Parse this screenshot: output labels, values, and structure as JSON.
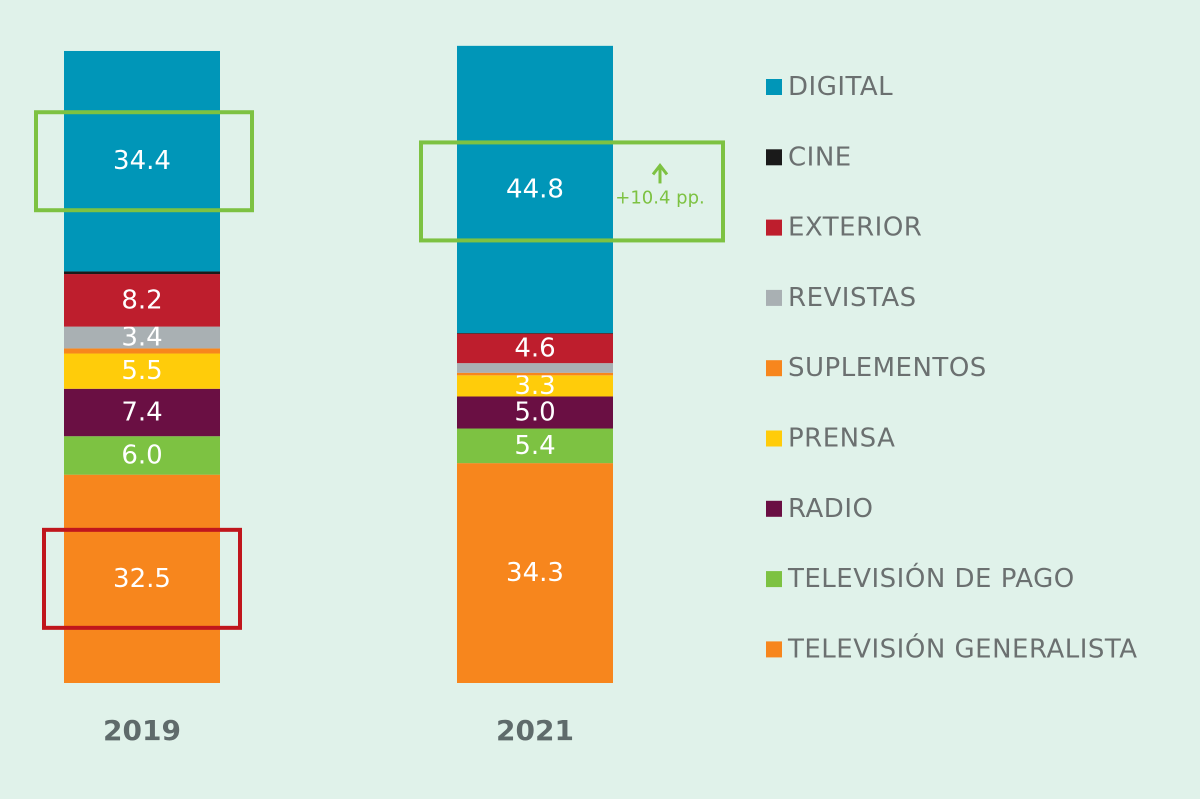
{
  "chart_data": {
    "type": "bar",
    "stacked": true,
    "categories": [
      "2019",
      "2021"
    ],
    "ylim": [
      0,
      100
    ],
    "grid": false,
    "legend_position": "right",
    "series": [
      {
        "name": "TELEVISIÓN GENERALISTA",
        "color": "#f7861d",
        "values": [
          32.5,
          34.3
        ],
        "labels": [
          "32.5",
          "34.3"
        ]
      },
      {
        "name": "TELEVISIÓN DE PAGO",
        "color": "#7dc242",
        "values": [
          6.0,
          5.4
        ],
        "labels": [
          "6.0",
          "5.4"
        ]
      },
      {
        "name": "RADIO",
        "color": "#6a0f43",
        "values": [
          7.4,
          5.0
        ],
        "labels": [
          "7.4",
          "5.0"
        ]
      },
      {
        "name": "PRENSA",
        "color": "#ffcc0a",
        "values": [
          5.5,
          3.3
        ],
        "labels": [
          "5.5",
          "3.3"
        ]
      },
      {
        "name": "SUPLEMENTOS",
        "color": "#f7861d",
        "values": [
          0.8,
          0.4
        ],
        "labels": [
          "",
          ""
        ]
      },
      {
        "name": "REVISTAS",
        "color": "#a9b0b3",
        "values": [
          3.4,
          1.5
        ],
        "labels": [
          "3.4",
          ""
        ]
      },
      {
        "name": "EXTERIOR",
        "color": "#be1e2d",
        "values": [
          8.2,
          4.6
        ],
        "labels": [
          "8.2",
          "4.6"
        ]
      },
      {
        "name": "CINE",
        "color": "#1a1a1a",
        "values": [
          0.4,
          0.1
        ],
        "labels": [
          "",
          ""
        ]
      },
      {
        "name": "DIGITAL",
        "color": "#0096b8",
        "values": [
          34.4,
          44.8
        ],
        "labels": [
          "34.4",
          "44.8"
        ]
      }
    ],
    "annotations": [
      {
        "category": "2019",
        "series": "DIGITAL",
        "box_color": "#7dc242"
      },
      {
        "category": "2019",
        "series": "TELEVISIÓN GENERALISTA",
        "box_color": "#c0161c"
      },
      {
        "category": "2021",
        "series": "DIGITAL",
        "box_color": "#7dc242",
        "text": "+10.4 pp.",
        "arrow": "up"
      }
    ]
  },
  "colors": {
    "background": "#e0f2ea",
    "year_label": "#5f6b6b",
    "legend_text": "#6b7070"
  }
}
